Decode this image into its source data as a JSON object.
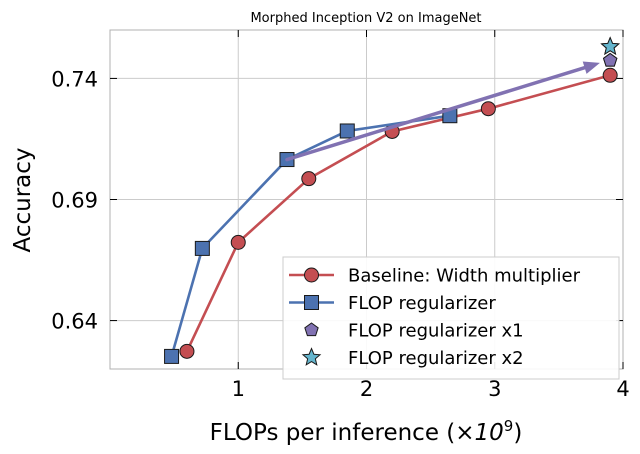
{
  "chart_data": {
    "type": "line",
    "title": "Morphed Inception V2 on ImageNet",
    "xlabel_main": "FLOPs per inference (",
    "xlabel_factor": "×10",
    "xlabel_exponent": "9",
    "xlabel_close": ")",
    "ylabel": "Accuracy",
    "xlim": [
      0.0,
      4.0
    ],
    "ylim": [
      0.62,
      0.76
    ],
    "xticks": [
      1,
      2,
      3,
      4
    ],
    "yticks": [
      0.64,
      0.69,
      0.74
    ],
    "ytick_labels": [
      "0.64",
      "0.69",
      "0.74"
    ],
    "grid": true,
    "legend_position": "lower-right",
    "series": [
      {
        "name": "Baseline: Width multiplier",
        "color": "#c44e52",
        "marker": "circle",
        "line": true,
        "points": [
          [
            0.6,
            0.6273
          ],
          [
            1.0,
            0.6723
          ],
          [
            1.55,
            0.6986
          ],
          [
            2.2,
            0.7181
          ],
          [
            2.95,
            0.7275
          ],
          [
            3.9,
            0.7413
          ]
        ]
      },
      {
        "name": "FLOP regularizer",
        "color": "#4c72b0",
        "marker": "square",
        "line": true,
        "points": [
          [
            0.48,
            0.6252
          ],
          [
            0.72,
            0.6698
          ],
          [
            1.38,
            0.7065
          ],
          [
            1.85,
            0.7183
          ],
          [
            2.65,
            0.7246
          ]
        ]
      },
      {
        "name": "FLOP regularizer x1",
        "color": "#8172b2",
        "marker": "pentagon",
        "line": false,
        "points": [
          [
            3.9,
            0.7474
          ]
        ]
      },
      {
        "name": "FLOP regularizer x2",
        "color": "#64b5cd",
        "marker": "star",
        "line": false,
        "points": [
          [
            3.9,
            0.7531
          ]
        ]
      }
    ],
    "annotations": [
      {
        "type": "arrow",
        "color": "#8172b2",
        "from": [
          1.38,
          0.7065
        ],
        "to": [
          3.82,
          0.7464
        ]
      }
    ]
  }
}
